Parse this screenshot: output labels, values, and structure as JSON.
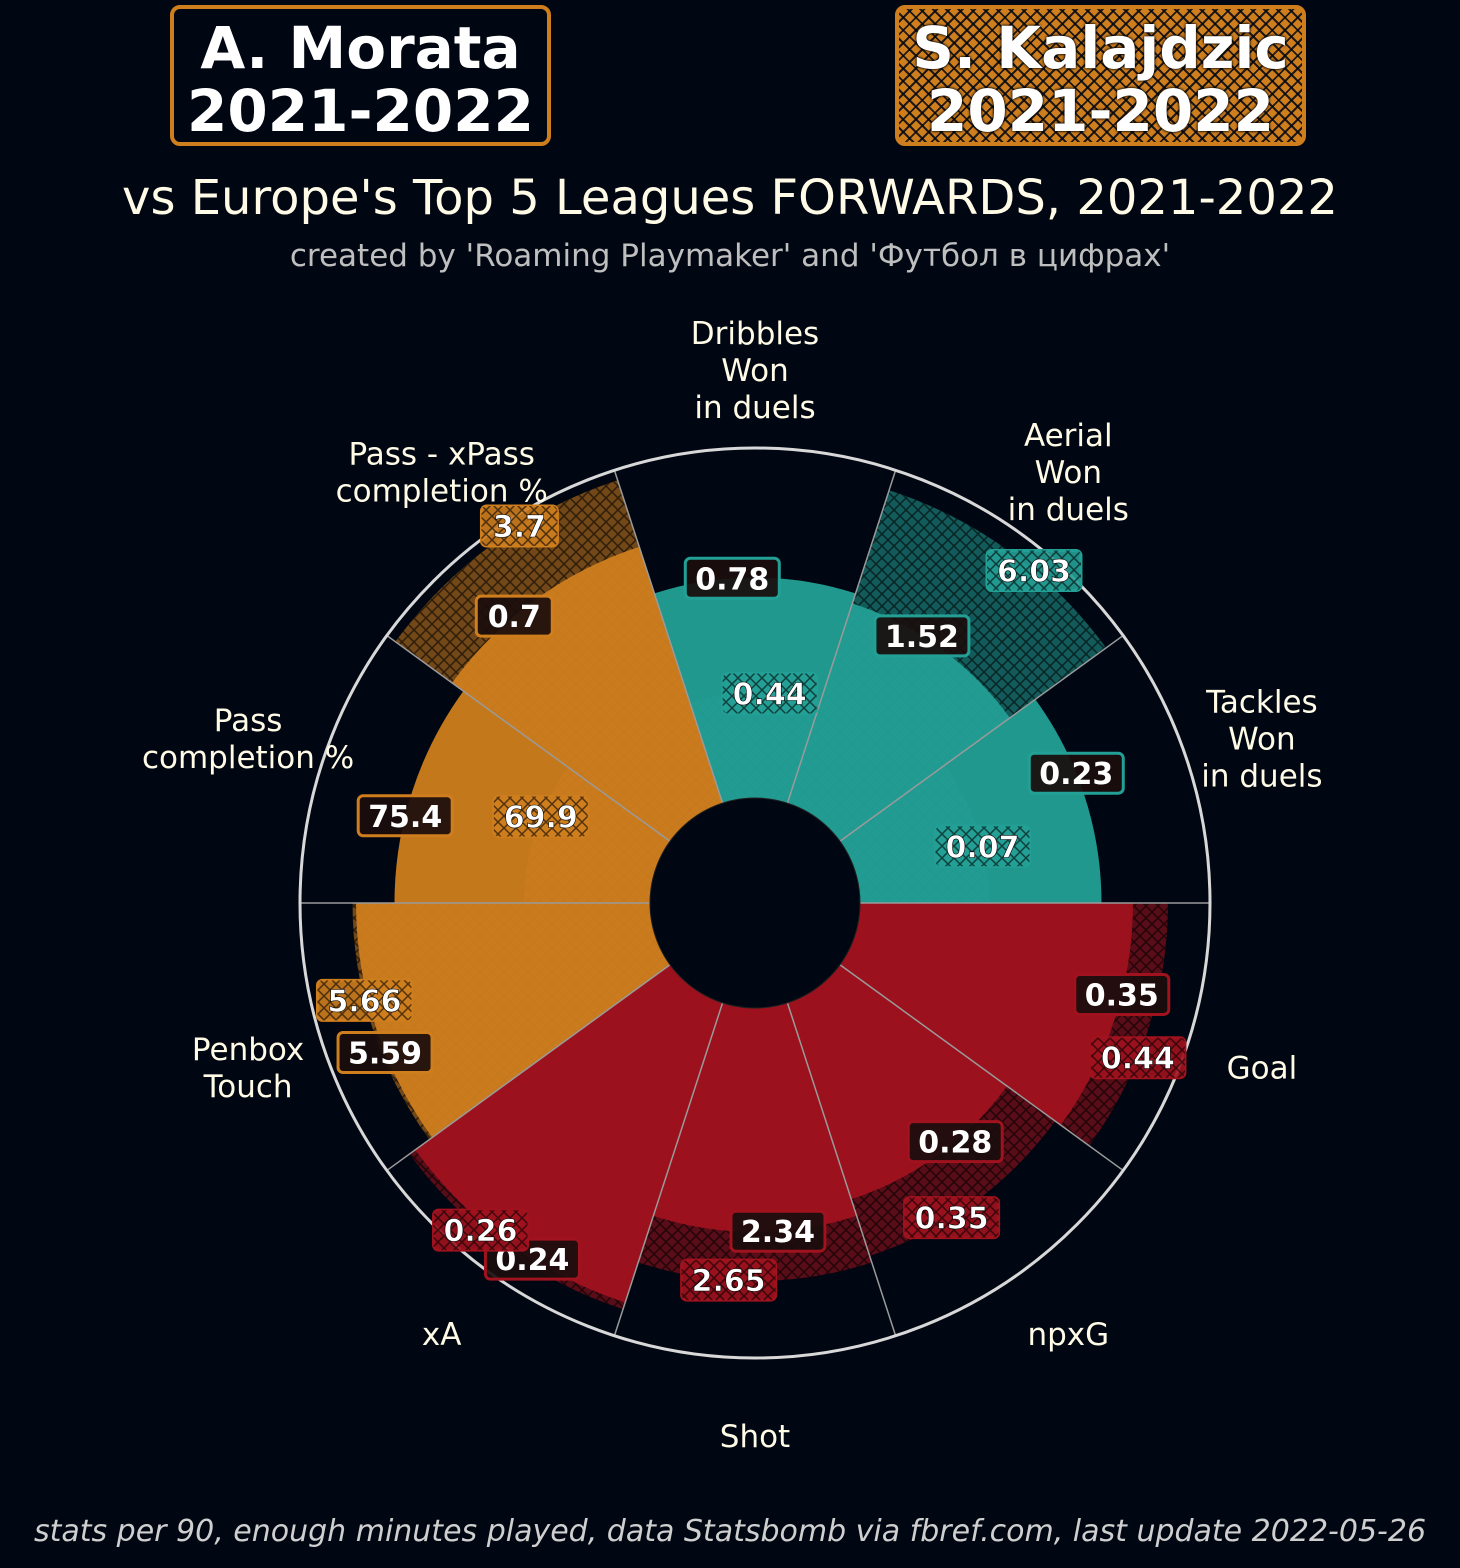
{
  "players": [
    {
      "name": "A. Morata",
      "season": "2021-2022"
    },
    {
      "name": "S. Kalajdzic",
      "season": "2021-2022"
    }
  ],
  "title": "vs Europe's Top 5 Leagues FORWARDS, 2021-2022",
  "subtitle": "created by 'Roaming Playmaker' and 'Футбол в цифрах'",
  "footer": "stats per 90, enough minutes played, data Statsbomb via fbref.com, last update 2022-05-26",
  "colors": {
    "background": "#010712",
    "passing": "#cf7e1e",
    "defending": "#23a096",
    "attacking": "#a0121e",
    "label_text": "#fffbe6",
    "ring": "#d8d8d8"
  },
  "chart_data": {
    "type": "pizza",
    "series": [
      {
        "name": "A. Morata 2021-2022",
        "style": "solid"
      },
      {
        "name": "S. Kalajdzic 2021-2022",
        "style": "hatched"
      }
    ],
    "categories": [
      {
        "label": "Dribbles\nWon\nin duels",
        "group": "defending",
        "values": [
          0.78,
          0.44
        ],
        "percentile_estimate": [
          0.63,
          0.3
        ]
      },
      {
        "label": "Aerial\nWon\nin duels",
        "group": "defending",
        "values": [
          1.52,
          6.03
        ],
        "percentile_estimate": [
          0.6,
          0.94
        ]
      },
      {
        "label": "Tackles\nWon\nin duels",
        "group": "defending",
        "values": [
          0.23,
          0.07
        ],
        "percentile_estimate": [
          0.69,
          0.37
        ]
      },
      {
        "label": "Goal",
        "group": "attacking",
        "values": [
          0.35,
          0.44
        ],
        "percentile_estimate": [
          0.78,
          0.88
        ]
      },
      {
        "label": "npxG",
        "group": "attacking",
        "values": [
          0.28,
          0.35
        ],
        "percentile_estimate": [
          0.59,
          0.76
        ]
      },
      {
        "label": "Shot",
        "group": "attacking",
        "values": [
          2.34,
          2.65
        ],
        "percentile_estimate": [
          0.64,
          0.78
        ]
      },
      {
        "label": "xA",
        "group": "attacking",
        "values": [
          0.24,
          0.26
        ],
        "percentile_estimate": [
          0.9,
          0.92
        ]
      },
      {
        "label": "Penbox\nTouch",
        "group": "passing",
        "values": [
          5.59,
          5.66
        ],
        "percentile_estimate": [
          0.84,
          0.85
        ]
      },
      {
        "label": "Pass\ncompletion %",
        "group": "passing",
        "values": [
          75.4,
          69.9
        ],
        "percentile_estimate": [
          0.73,
          0.36
        ]
      },
      {
        "label": "Pass - xPass\ncompletion %",
        "group": "passing",
        "values": [
          0.7,
          3.7
        ],
        "percentile_estimate": [
          0.77,
          0.97
        ]
      }
    ],
    "scale": [
      0,
      1
    ],
    "legend": "top"
  }
}
